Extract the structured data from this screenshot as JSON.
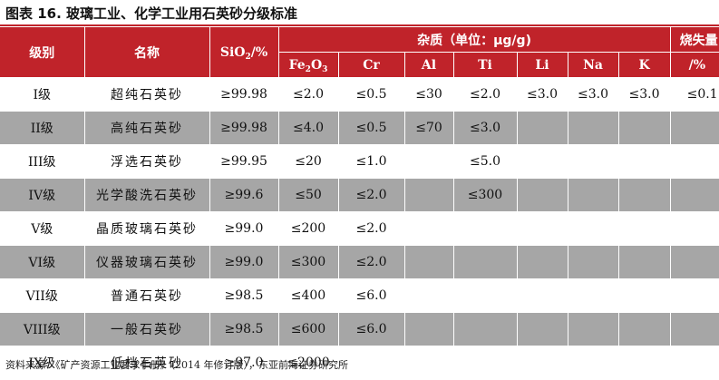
{
  "caption": "图表 16. 玻璃工业、化学工业用石英砂分级标准",
  "header": {
    "grade": "级别",
    "name": "名称",
    "sio2_main": "SiO",
    "sio2_sub": "2",
    "sio2_unit": "/%",
    "impurities": "杂质（单位：μg/g)",
    "fe_main": "Fe",
    "fe_sub1": "2",
    "fe_mid": "O",
    "fe_sub2": "3",
    "cr": "Cr",
    "al": "Al",
    "ti": "Ti",
    "li": "Li",
    "na": "Na",
    "k": "K",
    "loss": "烧失量",
    "loss_unit": "/%"
  },
  "rows": [
    {
      "grade": "I级",
      "name": "超纯石英砂",
      "sio2": "≥99.98",
      "fe2o3": "≤2.0",
      "cr": "≤0.5",
      "al": "≤30",
      "ti": "≤2.0",
      "li": "≤3.0",
      "na": "≤3.0",
      "k": "≤3.0",
      "loss": "≤0.1"
    },
    {
      "grade": "II级",
      "name": "高纯石英砂",
      "sio2": "≥99.98",
      "fe2o3": "≤4.0",
      "cr": "≤0.5",
      "al": "≤70",
      "ti": "≤3.0",
      "li": "",
      "na": "",
      "k": "",
      "loss": ""
    },
    {
      "grade": "III级",
      "name": "浮选石英砂",
      "sio2": "≥99.95",
      "fe2o3": "≤20",
      "cr": "≤1.0",
      "al": "",
      "ti": "≤5.0",
      "li": "",
      "na": "",
      "k": "",
      "loss": ""
    },
    {
      "grade": "IV级",
      "name": "光学酸洗石英砂",
      "sio2": "≥99.6",
      "fe2o3": "≤50",
      "cr": "≤2.0",
      "al": "",
      "ti": "≤300",
      "li": "",
      "na": "",
      "k": "",
      "loss": ""
    },
    {
      "grade": "V级",
      "name": "晶质玻璃石英砂",
      "sio2": "≥99.0",
      "fe2o3": "≤200",
      "cr": "≤2.0",
      "al": "",
      "ti": "",
      "li": "",
      "na": "",
      "k": "",
      "loss": ""
    },
    {
      "grade": "VI级",
      "name": "仪器玻璃石英砂",
      "sio2": "≥99.0",
      "fe2o3": "≤300",
      "cr": "≤2.0",
      "al": "",
      "ti": "",
      "li": "",
      "na": "",
      "k": "",
      "loss": ""
    },
    {
      "grade": "VII级",
      "name": "普通石英砂",
      "sio2": "≥98.5",
      "fe2o3": "≤400",
      "cr": "≤6.0",
      "al": "",
      "ti": "",
      "li": "",
      "na": "",
      "k": "",
      "loss": ""
    },
    {
      "grade": "VIII级",
      "name": "一般石英砂",
      "sio2": "≥98.5",
      "fe2o3": "≤600",
      "cr": "≤6.0",
      "al": "",
      "ti": "",
      "li": "",
      "na": "",
      "k": "",
      "loss": ""
    },
    {
      "grade": "IX级",
      "name": "低档石英砂",
      "sio2": "≥97.0",
      "fe2o3": "≤2000",
      "cr": "",
      "al": "",
      "ti": "",
      "li": "",
      "na": "",
      "k": "",
      "loss": ""
    }
  ],
  "footnote": "资料来源：《矿产资源工业要求手册》（2014 年修订版），东亚前海证券研究所",
  "colors": {
    "accent": "#c0232a",
    "stripe": "#a6a6a6",
    "background": "#ffffff"
  }
}
